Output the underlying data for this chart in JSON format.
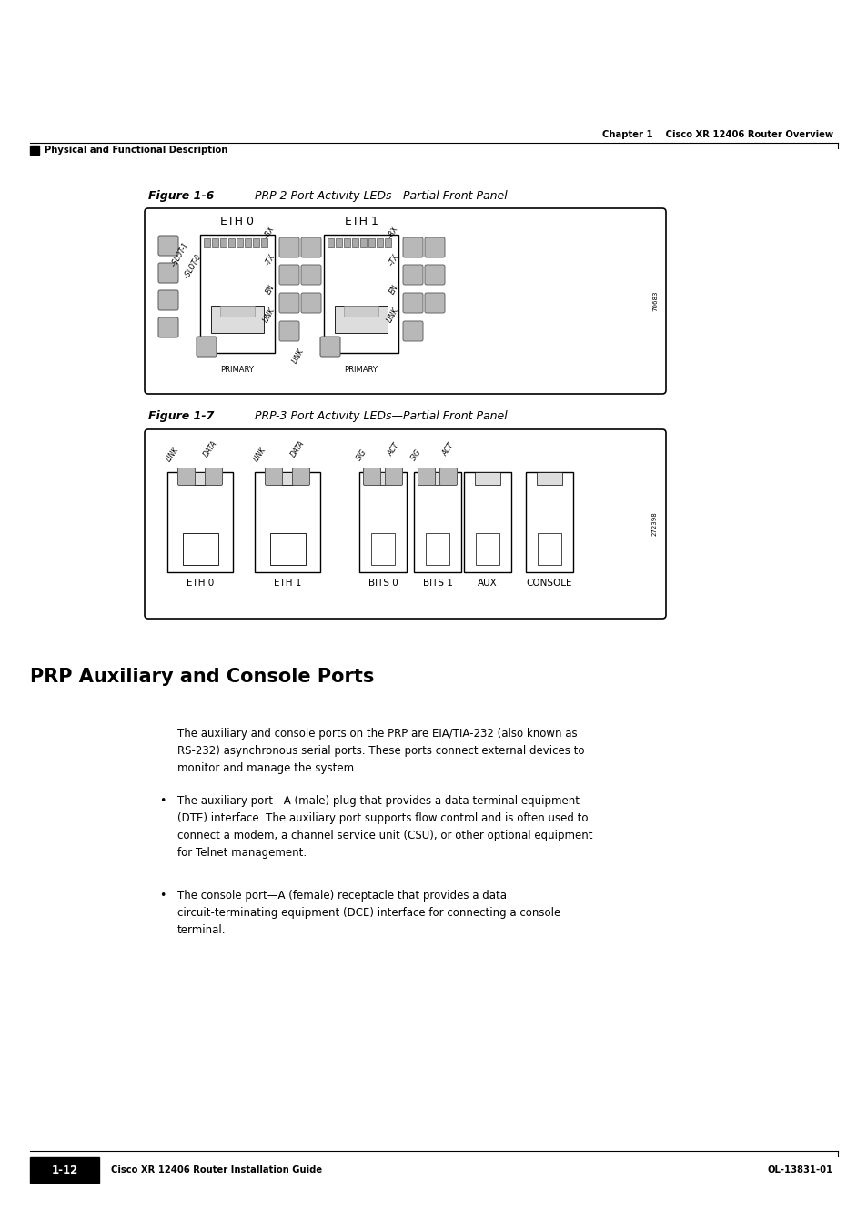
{
  "bg_color": "#ffffff",
  "page_width": 9.54,
  "page_height": 13.51,
  "header_text_right": "Chapter 1    Cisco XR 12406 Router Overview",
  "header_text_left": "Physical and Functional Description",
  "fig6_title_bold": "Figure 1-6",
  "fig6_title_rest": "        PRP-2 Port Activity LEDs—Partial Front Panel",
  "fig7_title_bold": "Figure 1-7",
  "fig7_title_rest": "        PRP-3 Port Activity LEDs—Partial Front Panel",
  "section_title": "PRP Auxiliary and Console Ports",
  "para1": "The auxiliary and console ports on the PRP are EIA/TIA-232 (also known as\nRS-232) asynchronous serial ports. These ports connect external devices to\nmonitor and manage the system.",
  "bullet1": "The auxiliary port—A (male) plug that provides a data terminal equipment\n(DTE) interface. The auxiliary port supports flow control and is often used to\nconnect a modem, a channel service unit (CSU), or other optional equipment\nfor Telnet management.",
  "bullet2": "The console port—A (female) receptacle that provides a data\ncircuit-terminating equipment (DCE) interface for connecting a console\nterminal.",
  "footer_left": "Cisco XR 12406 Router Installation Guide",
  "footer_page": "1-12",
  "footer_right": "OL-13831-01",
  "serial1": "70683",
  "serial2": "272398"
}
